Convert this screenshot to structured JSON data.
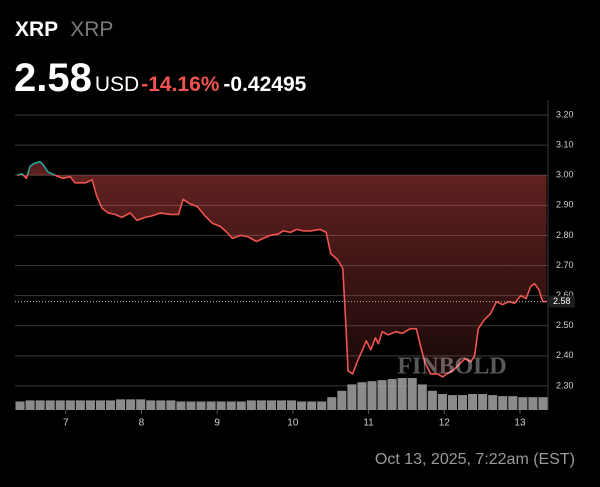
{
  "header": {
    "symbol": "XRP",
    "name": "XRP",
    "price": "2.58",
    "currency": "USD",
    "change_pct": "-14.16%",
    "change": "-0.42495"
  },
  "footer": {
    "timestamp": "Oct 13, 2025, 7:22am (EST)"
  },
  "watermark": "FINBOLD",
  "chart_data": {
    "type": "line",
    "x": [
      6.36,
      6.42,
      6.48,
      6.53,
      6.59,
      6.66,
      6.7,
      6.77,
      6.86,
      6.96,
      7.06,
      7.12,
      7.26,
      7.35,
      7.41,
      7.48,
      7.56,
      7.65,
      7.74,
      7.85,
      7.94,
      8.05,
      8.14,
      8.25,
      8.38,
      8.49,
      8.55,
      8.64,
      8.74,
      8.84,
      8.94,
      9.04,
      9.13,
      9.2,
      9.31,
      9.41,
      9.52,
      9.61,
      9.7,
      9.81,
      9.87,
      9.97,
      10.05,
      10.14,
      10.23,
      10.36,
      10.44,
      10.5,
      10.59,
      10.66,
      10.7,
      10.73,
      10.79,
      10.85,
      10.92,
      10.97,
      11.03,
      11.09,
      11.13,
      11.18,
      11.26,
      11.36,
      11.45,
      11.55,
      11.63,
      11.69,
      11.74,
      11.82,
      11.91,
      11.98,
      12.03,
      12.11,
      12.19,
      12.27,
      12.35,
      12.4,
      12.45,
      12.53,
      12.61,
      12.69,
      12.77,
      12.85,
      12.93,
      13.01,
      13.08,
      13.14,
      13.19,
      13.25,
      13.3,
      13.35
    ],
    "series": [
      {
        "name": "XRP",
        "up_color": "#26a69a",
        "down_color": "#f05350",
        "values": [
          3.0,
          3.005,
          2.99,
          3.03,
          3.04,
          3.045,
          3.035,
          3.01,
          3.0,
          2.99,
          2.995,
          2.975,
          2.975,
          2.985,
          2.93,
          2.89,
          2.875,
          2.87,
          2.86,
          2.875,
          2.85,
          2.86,
          2.865,
          2.875,
          2.87,
          2.87,
          2.92,
          2.905,
          2.895,
          2.865,
          2.84,
          2.83,
          2.81,
          2.79,
          2.8,
          2.795,
          2.78,
          2.79,
          2.8,
          2.805,
          2.815,
          2.81,
          2.82,
          2.815,
          2.815,
          2.82,
          2.81,
          2.74,
          2.72,
          2.69,
          2.5,
          2.35,
          2.34,
          2.38,
          2.42,
          2.45,
          2.42,
          2.46,
          2.44,
          2.48,
          2.47,
          2.48,
          2.475,
          2.49,
          2.49,
          2.43,
          2.38,
          2.34,
          2.34,
          2.33,
          2.34,
          2.35,
          2.37,
          2.39,
          2.38,
          2.4,
          2.49,
          2.52,
          2.54,
          2.58,
          2.57,
          2.58,
          2.575,
          2.6,
          2.59,
          2.63,
          2.64,
          2.62,
          2.58,
          2.58
        ]
      }
    ],
    "baseline": 3.0,
    "current_price": {
      "value": 2.58,
      "label": "2.58"
    },
    "volume": {
      "color": "#9a9a9a",
      "values": [
        8,
        9,
        9,
        9,
        9,
        9,
        9,
        9,
        9,
        9,
        10,
        10,
        10,
        9,
        9,
        9,
        8,
        8,
        8,
        8,
        8,
        8,
        8,
        9,
        9,
        9,
        9,
        9,
        8,
        8,
        8,
        12,
        18,
        24,
        26,
        27,
        28,
        29,
        30,
        30,
        24,
        18,
        15,
        14,
        14,
        15,
        15,
        14,
        13,
        13,
        12,
        12,
        12
      ]
    },
    "xlim": [
      6.33,
      13.37
    ],
    "xticks": [
      7,
      8,
      9,
      10,
      11,
      12,
      13
    ],
    "ylim": [
      2.22,
      3.25
    ],
    "yticks": [
      {
        "value": 2.3,
        "label": "2.30"
      },
      {
        "value": 2.4,
        "label": "2.40"
      },
      {
        "value": 2.5,
        "label": "2.50"
      },
      {
        "value": 2.6,
        "label": "2.60"
      },
      {
        "value": 2.7,
        "label": "2.70"
      },
      {
        "value": 2.8,
        "label": "2.80"
      },
      {
        "value": 2.9,
        "label": "2.90"
      },
      {
        "value": 3.0,
        "label": "3.00"
      },
      {
        "value": 3.1,
        "label": "3.10"
      },
      {
        "value": 3.2,
        "label": "3.20"
      }
    ],
    "grid": true
  }
}
